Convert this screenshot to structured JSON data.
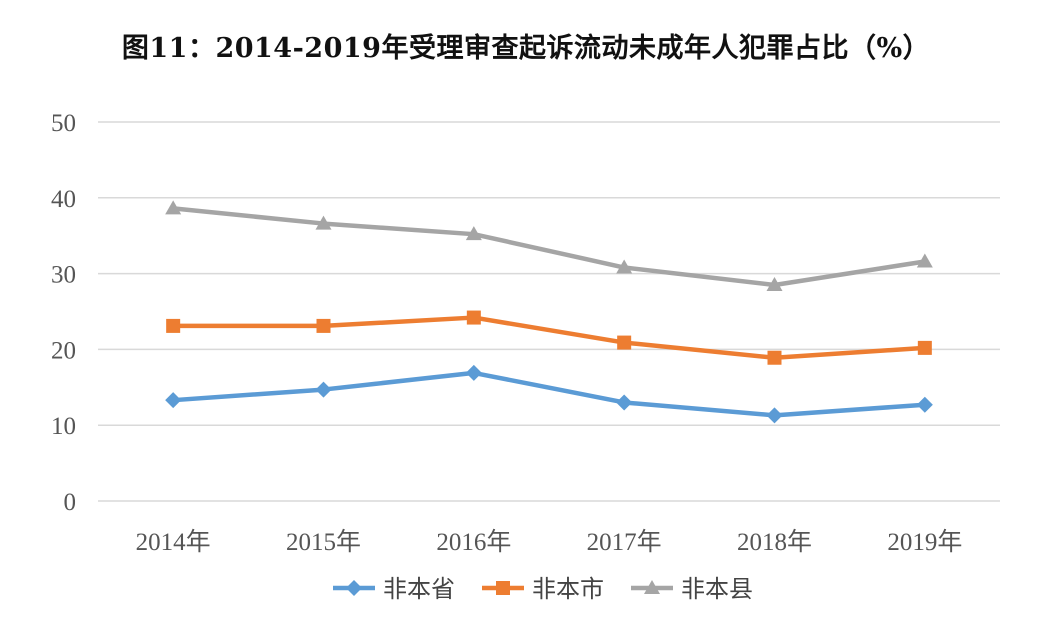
{
  "chart_data": {
    "type": "line",
    "title": "图11：2014-2019年受理审查起诉流动未成年人犯罪占比（%）",
    "categories": [
      "2014年",
      "2015年",
      "2016年",
      "2017年",
      "2018年",
      "2019年"
    ],
    "y_ticks": [
      "0",
      "10",
      "20",
      "30",
      "40",
      "50"
    ],
    "ylim": [
      0,
      50
    ],
    "grid": true,
    "legend_position": "bottom",
    "series": [
      {
        "name": "非本省",
        "color": "#5b9bd5",
        "marker": "diamond",
        "values": [
          13.3,
          14.7,
          16.9,
          13.0,
          11.3,
          12.7
        ]
      },
      {
        "name": "非本市",
        "color": "#ed7d31",
        "marker": "square",
        "values": [
          23.1,
          23.1,
          24.2,
          20.9,
          18.9,
          20.2
        ]
      },
      {
        "name": "非本县",
        "color": "#a5a5a5",
        "marker": "triangle",
        "values": [
          38.6,
          36.6,
          35.2,
          30.8,
          28.5,
          31.6
        ]
      }
    ]
  }
}
